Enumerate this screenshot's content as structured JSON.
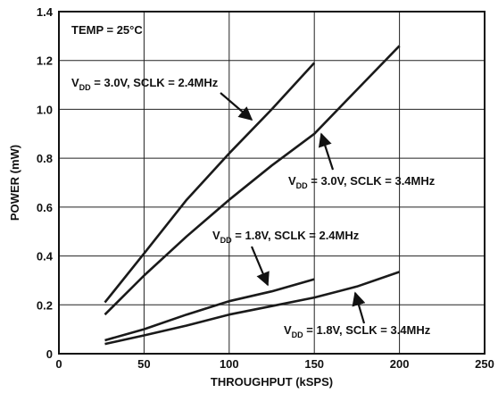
{
  "chart_data": {
    "type": "line",
    "title": "",
    "xlabel": "THROUGHPUT (kSPS)",
    "ylabel": "POWER (mW)",
    "xlim": [
      0,
      250
    ],
    "ylim": [
      0,
      1.4
    ],
    "x_ticks": [
      "0",
      "50",
      "100",
      "150",
      "200",
      "250"
    ],
    "y_ticks": [
      "0",
      "0.2",
      "0.4",
      "0.6",
      "0.8",
      "1.0",
      "1.2",
      "1.4"
    ],
    "grid": true,
    "legend": "none",
    "line_color": "#1a1a1a",
    "annotations": {
      "temp": "TEMP = 25°C"
    },
    "series": [
      {
        "label_prefix": "V",
        "label_sub": "DD",
        "label_rest": " = 3.0V, SCLK = 2.4MHz",
        "points": [
          [
            27,
            0.21
          ],
          [
            50,
            0.41
          ],
          [
            75,
            0.63
          ],
          [
            100,
            0.82
          ],
          [
            125,
            1.0
          ],
          [
            150,
            1.19
          ]
        ]
      },
      {
        "label_prefix": "V",
        "label_sub": "DD",
        "label_rest": " = 3.0V, SCLK = 3.4MHz",
        "points": [
          [
            27,
            0.16
          ],
          [
            50,
            0.32
          ],
          [
            75,
            0.48
          ],
          [
            100,
            0.63
          ],
          [
            125,
            0.77
          ],
          [
            150,
            0.9
          ],
          [
            175,
            1.08
          ],
          [
            200,
            1.26
          ]
        ]
      },
      {
        "label_prefix": "V",
        "label_sub": "DD",
        "label_rest": " = 1.8V, SCLK = 2.4MHz",
        "points": [
          [
            27,
            0.055
          ],
          [
            50,
            0.1
          ],
          [
            75,
            0.16
          ],
          [
            100,
            0.215
          ],
          [
            125,
            0.255
          ],
          [
            150,
            0.305
          ]
        ]
      },
      {
        "label_prefix": "V",
        "label_sub": "DD",
        "label_rest": " = 1.8V, SCLK = 3.4MHz",
        "points": [
          [
            27,
            0.04
          ],
          [
            50,
            0.075
          ],
          [
            75,
            0.115
          ],
          [
            100,
            0.16
          ],
          [
            125,
            0.195
          ],
          [
            150,
            0.23
          ],
          [
            175,
            0.275
          ],
          [
            200,
            0.335
          ]
        ]
      }
    ]
  }
}
